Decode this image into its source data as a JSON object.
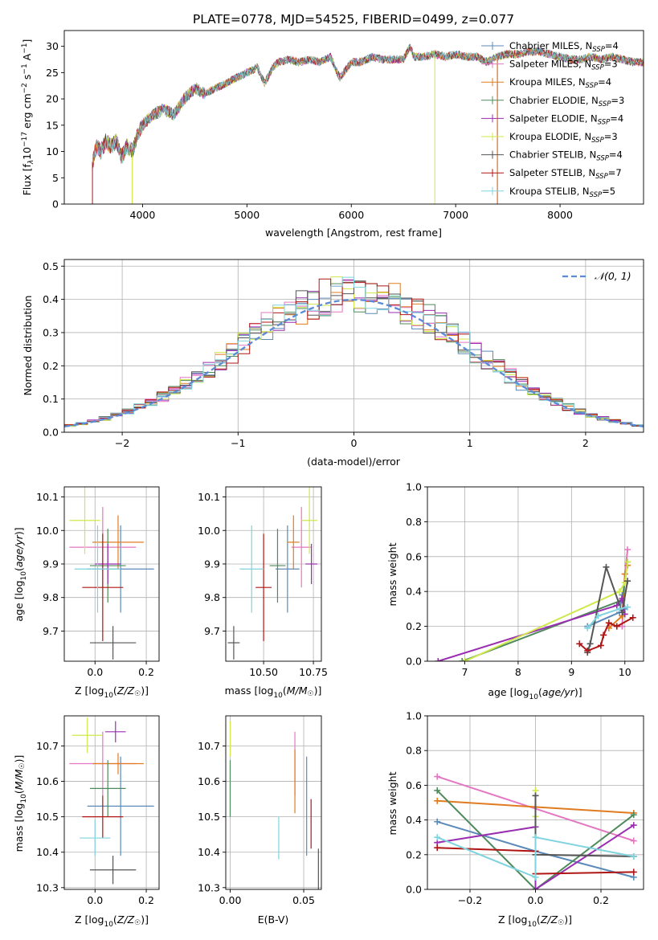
{
  "figure": {
    "title": "PLATE=0778, MJD=54525, FIBERID=0499, z=0.077"
  },
  "colors": {
    "Chabrier MILES": "#5b8ab8",
    "Salpeter MILES": "#e377c2",
    "Kroupa MILES": "#e07b20",
    "Chabrier ELODIE": "#4f8a5b",
    "Salpeter ELODIE": "#9a2eb0",
    "Kroupa ELODIE": "#cfe84a",
    "Chabrier STELIB": "#555555",
    "Salpeter STELIB": "#b01515",
    "Kroupa STELIB": "#7fd3de"
  },
  "chart_data": [
    {
      "type": "line",
      "title": "PLATE=0778, MJD=54525, FIBERID=0499, z=0.077",
      "xlabel": "wavelength [Angstrom, rest frame]",
      "ylabel": "Flux [fλ10⁻¹⁷ erg cm⁻² s⁻¹ A⁻¹]",
      "xlim": [
        3250,
        8800
      ],
      "ylim": [
        0,
        33
      ],
      "xticks": [
        4000,
        5000,
        6000,
        7000,
        8000
      ],
      "yticks": [
        0,
        5,
        10,
        15,
        20,
        25,
        30
      ],
      "legend_position": "top-right",
      "legend": [
        "Chabrier MILES, N_SSP=4",
        "Salpeter MILES, N_SSP=3",
        "Kroupa MILES, N_SSP=4",
        "Chabrier ELODIE, N_SSP=3",
        "Salpeter ELODIE, N_SSP=4",
        "Kroupa ELODIE, N_SSP=3",
        "Chabrier STELIB, N_SSP=4",
        "Salpeter STELIB, N_SSP=7",
        "Kroupa STELIB, N_SSP=5"
      ],
      "legend_labels": [
        {
          "base": "Chabrier MILES, N",
          "sub": "SSP",
          "tail": "=4"
        },
        {
          "base": "Salpeter MILES, N",
          "sub": "SSP",
          "tail": "=3"
        },
        {
          "base": "Kroupa MILES, N",
          "sub": "SSP",
          "tail": "=4"
        },
        {
          "base": "Chabrier ELODIE, N",
          "sub": "SSP",
          "tail": "=3"
        },
        {
          "base": "Salpeter ELODIE, N",
          "sub": "SSP",
          "tail": "=4"
        },
        {
          "base": "Kroupa ELODIE, N",
          "sub": "SSP",
          "tail": "=3"
        },
        {
          "base": "Chabrier STELIB, N",
          "sub": "SSP",
          "tail": "=4"
        },
        {
          "base": "Salpeter STELIB, N",
          "sub": "SSP",
          "tail": "=7"
        },
        {
          "base": "Kroupa STELIB, N",
          "sub": "SSP",
          "tail": "=5"
        }
      ],
      "spectrum_outline": {
        "x": [
          3520,
          3560,
          3600,
          3650,
          3700,
          3750,
          3800,
          3850,
          3900,
          3950,
          4000,
          4100,
          4200,
          4300,
          4400,
          4500,
          4600,
          4700,
          4800,
          4900,
          5000,
          5100,
          5170,
          5250,
          5300,
          5400,
          5500,
          5600,
          5700,
          5800,
          5890,
          6000,
          6100,
          6200,
          6300,
          6400,
          6500,
          6563,
          6600,
          6700,
          6800,
          6900,
          7000,
          7100,
          7200,
          7300,
          7400,
          7500,
          7600,
          7700,
          7800,
          7900,
          8000,
          8100,
          8200,
          8300,
          8400,
          8500,
          8600,
          8700,
          8800
        ],
        "y": [
          8,
          11,
          10,
          12,
          11,
          12,
          9,
          11,
          10,
          13,
          15,
          17,
          18,
          17,
          20,
          22,
          21,
          22,
          23,
          24,
          25,
          26,
          23,
          26,
          27,
          27.5,
          27,
          27.5,
          27,
          28,
          24,
          27,
          27,
          28,
          27.5,
          27.5,
          27.5,
          30,
          28,
          28,
          28.5,
          28,
          28.5,
          28,
          28,
          27,
          28,
          28.5,
          28.5,
          29,
          29,
          28.5,
          28,
          27.5,
          27.5,
          28,
          27.5,
          28,
          27.5,
          27,
          27
        ]
      }
    },
    {
      "type": "line",
      "xlabel": "(data-model)/error",
      "ylabel": "Normed distribution",
      "xlim": [
        -2.5,
        2.5
      ],
      "ylim": [
        0,
        0.52
      ],
      "xticks": [
        -2,
        -1,
        0,
        1,
        2
      ],
      "yticks": [
        0.0,
        0.1,
        0.2,
        0.3,
        0.4,
        0.5
      ],
      "grid": true,
      "legend_position": "top-right",
      "legend": [
        "N(0,1)"
      ],
      "legend_labels": [
        {
          "base": "𝒩(0, 1)"
        }
      ],
      "series": [
        {
          "name": "N(0,1)",
          "mean": 0,
          "std": 1
        }
      ],
      "histograms": {
        "bins_start": -2.5,
        "bin_width": 0.1,
        "count": 9,
        "peak_range": [
          0.38,
          0.5
        ]
      }
    },
    {
      "type": "scatter",
      "xlabel": "Z [log10(Z/Z☉)]",
      "ylabel": "age [log10(age/yr)]",
      "xlim": [
        -0.12,
        0.25
      ],
      "ylim": [
        9.61,
        10.13
      ],
      "xticks": [
        0.0,
        0.2
      ],
      "yticks": [
        9.7,
        9.8,
        9.9,
        10.0,
        10.1
      ],
      "grid": true,
      "points": [
        {
          "model": "Chabrier MILES",
          "x": 0.1,
          "xerr": 0.13,
          "y": 9.885,
          "yerr": 0.13
        },
        {
          "model": "Salpeter MILES",
          "x": 0.03,
          "xerr": 0.13,
          "y": 9.95,
          "yerr": 0.12
        },
        {
          "model": "Kroupa MILES",
          "x": 0.09,
          "xerr": 0.1,
          "y": 9.965,
          "yerr": 0.08
        },
        {
          "model": "Chabrier ELODIE",
          "x": 0.05,
          "xerr": 0.07,
          "y": 9.895,
          "yerr": 0.11
        },
        {
          "model": "Salpeter ELODIE",
          "x": 0.05,
          "xerr": 0.05,
          "y": 9.9,
          "yerr": 0.06
        },
        {
          "model": "Kroupa ELODIE",
          "x": -0.04,
          "xerr": 0.06,
          "y": 10.03,
          "yerr": 0.1
        },
        {
          "model": "Chabrier STELIB",
          "x": 0.07,
          "xerr": 0.09,
          "y": 9.665,
          "yerr": 0.05
        },
        {
          "model": "Salpeter STELIB",
          "x": 0.03,
          "xerr": 0.08,
          "y": 9.83,
          "yerr": 0.16
        },
        {
          "model": "Kroupa STELIB",
          "x": 0.01,
          "xerr": 0.09,
          "y": 9.885,
          "yerr": 0.13
        }
      ]
    },
    {
      "type": "scatter",
      "xlabel": "mass [log10(M/M☉)]",
      "ylabel": "",
      "xlim": [
        10.31,
        10.79
      ],
      "ylim": [
        9.61,
        10.13
      ],
      "xticks": [
        10.5,
        10.75
      ],
      "yticks": [
        9.7,
        9.8,
        9.9,
        10.0,
        10.1
      ],
      "grid": true,
      "points": [
        {
          "model": "Chabrier MILES",
          "x": 10.62,
          "xerr": 0.06,
          "y": 9.885,
          "yerr": 0.13
        },
        {
          "model": "Salpeter MILES",
          "x": 10.69,
          "xerr": 0.05,
          "y": 9.95,
          "yerr": 0.12
        },
        {
          "model": "Kroupa MILES",
          "x": 10.65,
          "xerr": 0.03,
          "y": 9.965,
          "yerr": 0.08
        },
        {
          "model": "Chabrier ELODIE",
          "x": 10.57,
          "xerr": 0.04,
          "y": 9.895,
          "yerr": 0.11
        },
        {
          "model": "Salpeter ELODIE",
          "x": 10.74,
          "xerr": 0.03,
          "y": 9.9,
          "yerr": 0.06
        },
        {
          "model": "Kroupa ELODIE",
          "x": 10.73,
          "xerr": 0.04,
          "y": 10.03,
          "yerr": 0.1
        },
        {
          "model": "Chabrier STELIB",
          "x": 10.35,
          "xerr": 0.03,
          "y": 9.665,
          "yerr": 0.05
        },
        {
          "model": "Salpeter STELIB",
          "x": 10.5,
          "xerr": 0.04,
          "y": 9.83,
          "yerr": 0.16
        },
        {
          "model": "Kroupa STELIB",
          "x": 10.44,
          "xerr": 0.06,
          "y": 9.885,
          "yerr": 0.13
        }
      ]
    },
    {
      "type": "line",
      "xlabel": "age [log10(age/yr)]",
      "ylabel": "mass weight",
      "xlim": [
        6.3,
        10.35
      ],
      "ylim": [
        0,
        1
      ],
      "xticks": [
        7,
        8,
        9,
        10
      ],
      "yticks": [
        0.0,
        0.2,
        0.4,
        0.6,
        0.8,
        1.0
      ],
      "grid": true,
      "series": [
        {
          "name": "Chabrier MILES",
          "x": [
            9.3,
            9.9,
            9.95,
            10.0
          ],
          "y": [
            0.2,
            0.28,
            0.38,
            0.3
          ]
        },
        {
          "name": "Salpeter MILES",
          "x": [
            9.95,
            10.0,
            10.05
          ],
          "y": [
            0.2,
            0.5,
            0.64
          ]
        },
        {
          "name": "Kroupa MILES",
          "x": [
            9.7,
            9.95,
            10.0,
            10.05
          ],
          "y": [
            0.19,
            0.26,
            0.5,
            0.55
          ]
        },
        {
          "name": "Chabrier ELODIE",
          "x": [
            6.95,
            9.95,
            10.05
          ],
          "y": [
            0.0,
            0.35,
            0.57
          ]
        },
        {
          "name": "Salpeter ELODIE",
          "x": [
            6.5,
            9.85,
            9.95,
            10.0
          ],
          "y": [
            0.0,
            0.32,
            0.36,
            0.27
          ]
        },
        {
          "name": "Kroupa ELODIE",
          "x": [
            7.0,
            9.9,
            10.0,
            10.05
          ],
          "y": [
            0.0,
            0.4,
            0.45,
            0.57
          ]
        },
        {
          "name": "Chabrier STELIB",
          "x": [
            9.3,
            9.35,
            9.65,
            9.95,
            10.05
          ],
          "y": [
            0.05,
            0.1,
            0.54,
            0.28,
            0.46
          ]
        },
        {
          "name": "Salpeter STELIB",
          "x": [
            9.15,
            9.3,
            9.55,
            9.6,
            9.7,
            9.85,
            10.15
          ],
          "y": [
            0.1,
            0.06,
            0.09,
            0.15,
            0.22,
            0.2,
            0.25
          ]
        },
        {
          "name": "Kroupa STELIB",
          "x": [
            9.3,
            9.5,
            9.9,
            10.05
          ],
          "y": [
            0.19,
            0.26,
            0.3,
            0.31
          ]
        }
      ]
    },
    {
      "type": "scatter",
      "xlabel": "Z [log10(Z/Z☉)]",
      "ylabel": "mass [log10(M/M☉)]",
      "xlim": [
        -0.12,
        0.25
      ],
      "ylim": [
        10.295,
        10.785
      ],
      "xticks": [
        0.0,
        0.2
      ],
      "yticks": [
        10.3,
        10.4,
        10.5,
        10.6,
        10.7
      ],
      "grid": true,
      "points": [
        {
          "model": "Chabrier MILES",
          "x": 0.1,
          "xerr": 0.13,
          "y": 10.53,
          "yerr": 0.14
        },
        {
          "model": "Salpeter MILES",
          "x": 0.03,
          "xerr": 0.13,
          "y": 10.65,
          "yerr": 0.09
        },
        {
          "model": "Kroupa MILES",
          "x": 0.09,
          "xerr": 0.1,
          "y": 10.65,
          "yerr": 0.03
        },
        {
          "model": "Chabrier ELODIE",
          "x": 0.05,
          "xerr": 0.07,
          "y": 10.58,
          "yerr": 0.08
        },
        {
          "model": "Salpeter ELODIE",
          "x": 0.08,
          "xerr": 0.04,
          "y": 10.74,
          "yerr": 0.03
        },
        {
          "model": "Kroupa ELODIE",
          "x": -0.03,
          "xerr": 0.06,
          "y": 10.73,
          "yerr": 0.05
        },
        {
          "model": "Chabrier STELIB",
          "x": 0.07,
          "xerr": 0.09,
          "y": 10.35,
          "yerr": 0.04
        },
        {
          "model": "Salpeter STELIB",
          "x": 0.03,
          "xerr": 0.08,
          "y": 10.5,
          "yerr": 0.06
        },
        {
          "model": "Kroupa STELIB",
          "x": 0.0,
          "xerr": 0.06,
          "y": 10.44,
          "yerr": 0.05
        }
      ]
    },
    {
      "type": "scatter",
      "xlabel": "E(B-V)",
      "ylabel": "",
      "xlim": [
        -0.003,
        0.062
      ],
      "ylim": [
        10.295,
        10.785
      ],
      "xticks": [
        0.0,
        0.05
      ],
      "yticks": [
        10.3,
        10.4,
        10.5,
        10.6,
        10.7
      ],
      "grid": true,
      "points": [
        {
          "model": "Chabrier MILES",
          "x": 0.052,
          "y": 10.53,
          "yerr": 0.14
        },
        {
          "model": "Salpeter MILES",
          "x": 0.044,
          "y": 10.65,
          "yerr": 0.09
        },
        {
          "model": "Kroupa MILES",
          "x": 0.044,
          "y": 10.6,
          "yerr": 0.09
        },
        {
          "model": "Chabrier ELODIE",
          "x": 0.0,
          "y": 10.58,
          "yerr": 0.08
        },
        {
          "model": "Kroupa ELODIE",
          "x": 0.0,
          "y": 10.72,
          "yerr": 0.05
        },
        {
          "model": "Chabrier STELIB",
          "x": 0.06,
          "y": 10.35,
          "yerr": 0.06
        },
        {
          "model": "Salpeter STELIB",
          "x": 0.055,
          "y": 10.48,
          "yerr": 0.07
        },
        {
          "model": "Kroupa STELIB",
          "x": 0.033,
          "y": 10.44,
          "yerr": 0.06
        }
      ]
    },
    {
      "type": "line",
      "xlabel": "Z [log10(Z/Z☉)]",
      "ylabel": "mass weight",
      "xlim": [
        -0.33,
        0.33
      ],
      "ylim": [
        0,
        1
      ],
      "xticks": [
        -0.2,
        0.0,
        0.2
      ],
      "yticks": [
        0.0,
        0.2,
        0.4,
        0.6,
        0.8,
        1.0
      ],
      "grid": true,
      "series": [
        {
          "name": "Chabrier MILES",
          "x": [
            -0.3,
            0.0,
            0.3
          ],
          "y": [
            0.39,
            0.22,
            0.07
          ]
        },
        {
          "name": "Salpeter MILES",
          "x": [
            -0.3,
            0.3
          ],
          "y": [
            0.65,
            0.28
          ]
        },
        {
          "name": "Kroupa MILES",
          "x": [
            -0.3,
            0.3
          ],
          "y": [
            0.51,
            0.44
          ]
        },
        {
          "name": "Chabrier ELODIE",
          "x": [
            -0.3,
            0.0,
            0.3
          ],
          "y": [
            0.57,
            0.0,
            0.43
          ]
        },
        {
          "name": "Salpeter ELODIE",
          "x": [
            -0.3,
            0.0,
            0.0,
            0.3
          ],
          "y": [
            0.27,
            0.36,
            0.0,
            0.37
          ]
        },
        {
          "name": "Kroupa ELODIE",
          "x": [
            0.0,
            0.0
          ],
          "y": [
            0.57,
            0.42
          ]
        },
        {
          "name": "Chabrier STELIB",
          "x": [
            0.0,
            0.0,
            0.3
          ],
          "y": [
            0.54,
            0.2,
            0.19
          ]
        },
        {
          "name": "Salpeter STELIB",
          "x": [
            -0.3,
            0.0,
            0.0,
            0.3
          ],
          "y": [
            0.24,
            0.22,
            0.09,
            0.1
          ]
        },
        {
          "name": "Kroupa STELIB",
          "x": [
            -0.3,
            0.0,
            0.0,
            0.3
          ],
          "y": [
            0.3,
            0.07,
            0.3,
            0.19
          ]
        }
      ]
    }
  ]
}
